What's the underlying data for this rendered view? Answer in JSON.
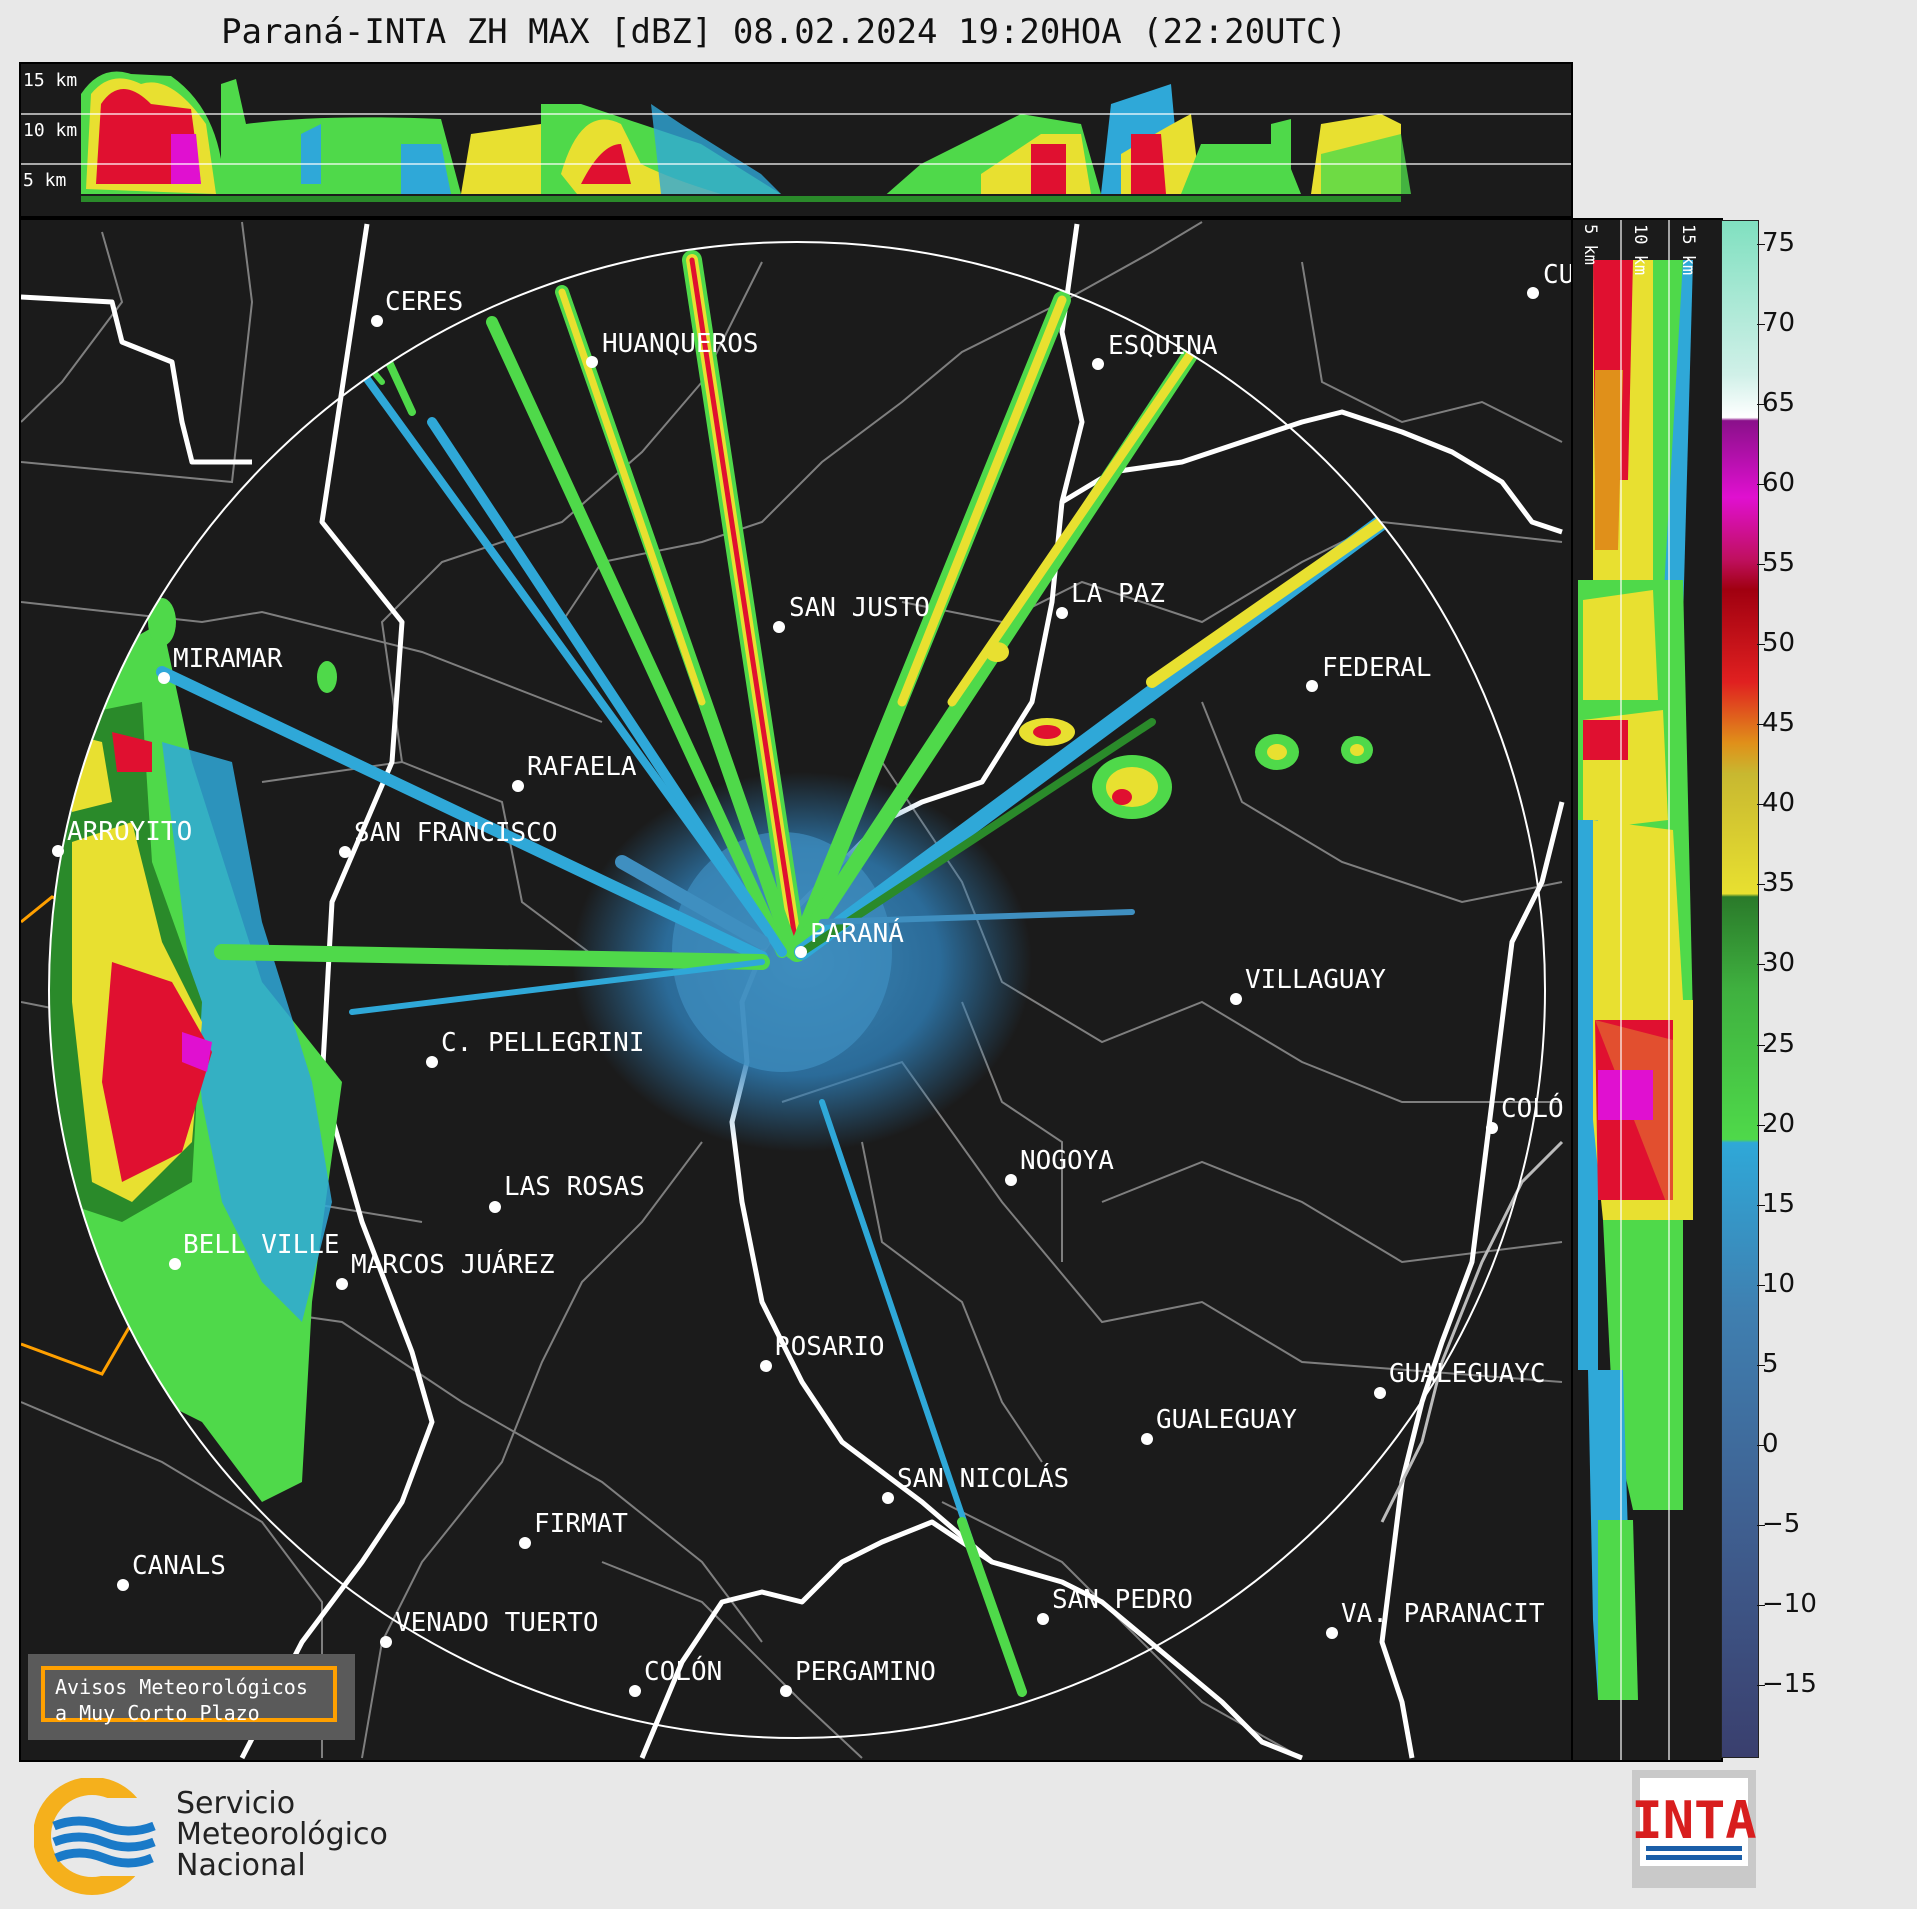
{
  "title": "Paraná-INTA ZH MAX [dBZ] 08.02.2024 19:20HOA (22:20UTC)",
  "top_height_labels": [
    "15 km",
    "10 km",
    "5 km"
  ],
  "side_height_labels": [
    "5 km",
    "10 km",
    "15 km"
  ],
  "colorbar": {
    "ticks": [
      "75",
      "70",
      "65",
      "60",
      "55",
      "50",
      "45",
      "40",
      "35",
      "30",
      "25",
      "20",
      "15",
      "10",
      "5",
      "0",
      "−5",
      "−10",
      "−15"
    ],
    "colors": {
      "neg": "#3a3f6e",
      "zero": "#3f6fa0",
      "light_blue": "#2fa8d8",
      "green": "#4fd94a",
      "dark_green": "#2a8a2a",
      "yellow": "#e8e030",
      "orange": "#e0901a",
      "red": "#e01030",
      "dark_red": "#a00010",
      "magenta": "#e010d0",
      "purple": "#a010a0",
      "white": "#ffffff",
      "aqua": "#80e0c0"
    }
  },
  "cities": [
    {
      "name": "CERES"
    },
    {
      "name": "HUANQUEROS"
    },
    {
      "name": "ESQUINA"
    },
    {
      "name": "CU"
    },
    {
      "name": "SAN JUSTO"
    },
    {
      "name": "LA PAZ"
    },
    {
      "name": "MIRAMAR"
    },
    {
      "name": "FEDERAL"
    },
    {
      "name": "RAFAELA"
    },
    {
      "name": "ARROYITO"
    },
    {
      "name": "SAN FRANCISCO"
    },
    {
      "name": "PARANÁ"
    },
    {
      "name": "VILLAGUAY"
    },
    {
      "name": "C. PELLEGRINI"
    },
    {
      "name": "COLÓ"
    },
    {
      "name": "NOGOYA"
    },
    {
      "name": "LAS ROSAS"
    },
    {
      "name": "BELL VILLE"
    },
    {
      "name": "MARCOS JUÁREZ"
    },
    {
      "name": "ROSARIO"
    },
    {
      "name": "GUALEGUAYC"
    },
    {
      "name": "GUALEGUAY"
    },
    {
      "name": "SAN NICOLÁS"
    },
    {
      "name": "FIRMAT"
    },
    {
      "name": "CANALS"
    },
    {
      "name": "SAN PEDRO"
    },
    {
      "name": "VA. PARANACIT"
    },
    {
      "name": "VENADO TUERTO"
    },
    {
      "name": "COLÓN"
    },
    {
      "name": "PERGAMINO"
    }
  ],
  "notice": {
    "line1": "Avisos Meteorológicos",
    "line2": "a Muy Corto Plazo"
  },
  "logo_smn": {
    "line1": "Servicio",
    "line2": "Meteorológico",
    "line3": "Nacional"
  },
  "logo_inta": "INTA"
}
